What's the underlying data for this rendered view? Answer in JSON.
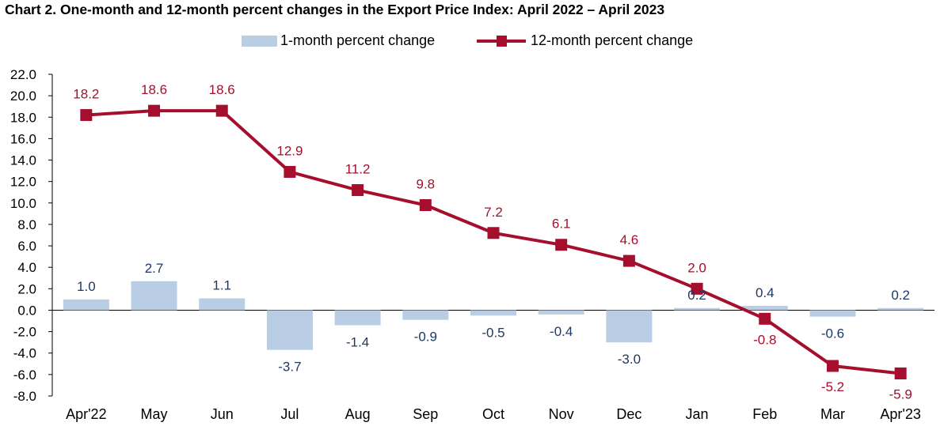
{
  "title": "Chart 2. One-month and 12-month percent changes in the Export Price Index: April 2022 – April 2023",
  "legend": {
    "bars_label": "1-month percent change",
    "line_label": "12-month percent change"
  },
  "colors": {
    "bar": "#b9cde5",
    "line": "#a50f2d",
    "bar_label": "#1f3864",
    "line_label": "#a50f2d"
  },
  "chart_data": {
    "type": "bar",
    "title": "Chart 2. One-month and 12-month percent changes in the Export Price Index: April 2022 – April 2023",
    "categories": [
      "Apr'22",
      "May",
      "Jun",
      "Jul",
      "Aug",
      "Sep",
      "Oct",
      "Nov",
      "Dec",
      "Jan",
      "Feb",
      "Mar",
      "Apr'23"
    ],
    "series": [
      {
        "name": "1-month percent change",
        "type": "bar",
        "values": [
          1.0,
          2.7,
          1.1,
          -3.7,
          -1.4,
          -0.9,
          -0.5,
          -0.4,
          -3.0,
          0.2,
          0.4,
          -0.6,
          0.2
        ],
        "labels": [
          "1.0",
          "2.7",
          "1.1",
          "-3.7",
          "-1.4",
          "-0.9",
          "-0.5",
          "-0.4",
          "-3.0",
          "0.2",
          "0.4",
          "-0.6",
          "0.2"
        ]
      },
      {
        "name": "12-month percent change",
        "type": "line",
        "values": [
          18.2,
          18.6,
          18.6,
          12.9,
          11.2,
          9.8,
          7.2,
          6.1,
          4.6,
          2.0,
          -0.8,
          -5.2,
          -5.9
        ],
        "labels": [
          "18.2",
          "18.6",
          "18.6",
          "12.9",
          "11.2",
          "9.8",
          "7.2",
          "6.1",
          "4.6",
          "2.0",
          "-0.8",
          "-5.2",
          "-5.9"
        ]
      }
    ],
    "ylim": [
      -8.0,
      22.0
    ],
    "yticks": [
      22.0,
      20.0,
      18.0,
      16.0,
      14.0,
      12.0,
      10.0,
      8.0,
      6.0,
      4.0,
      2.0,
      0.0,
      -2.0,
      -4.0,
      -6.0,
      -8.0
    ],
    "ytick_labels": [
      "22.0",
      "20.0",
      "18.0",
      "16.0",
      "14.0",
      "12.0",
      "10.0",
      "8.0",
      "6.0",
      "4.0",
      "2.0",
      "0.0",
      "-2.0",
      "-4.0",
      "-6.0",
      "-8.0"
    ],
    "xlabel": "",
    "ylabel": "",
    "grid": false,
    "legend_position": "top"
  }
}
